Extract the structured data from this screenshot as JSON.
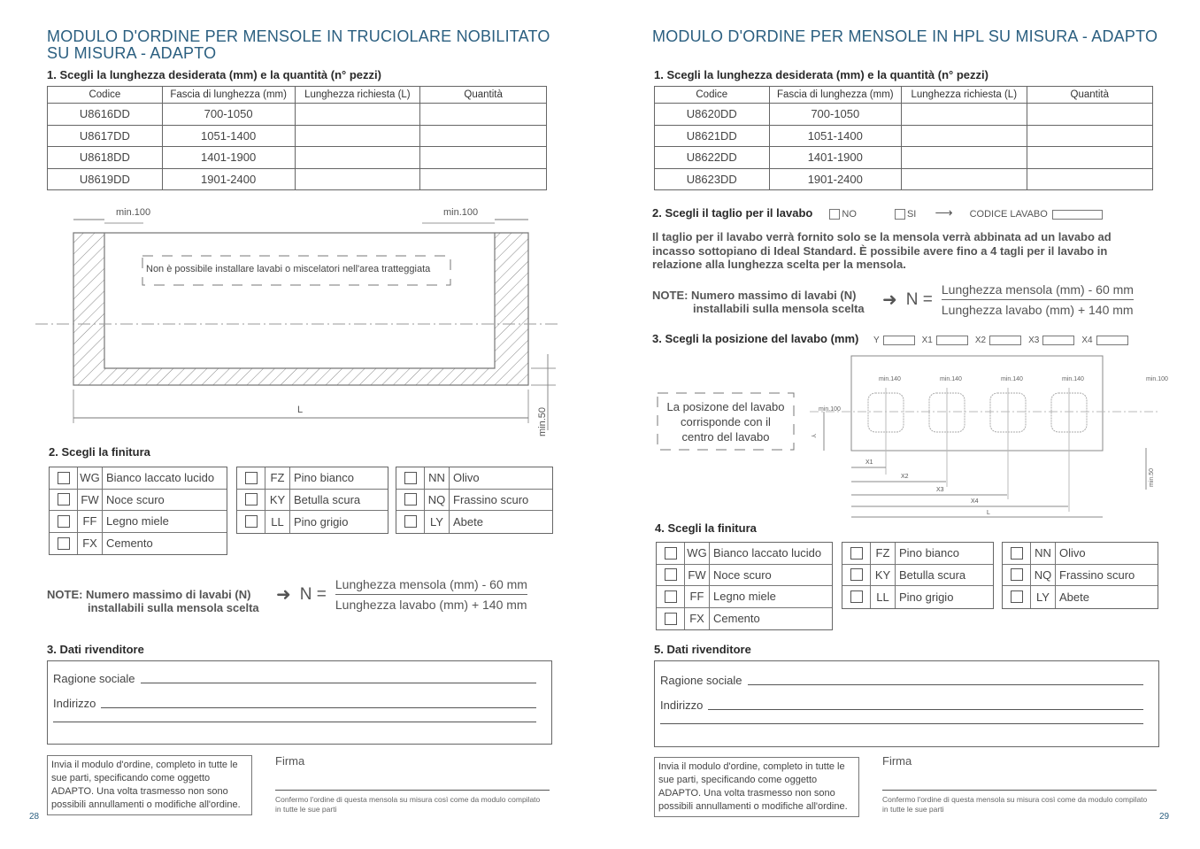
{
  "left": {
    "title_line1": "MODULO D'ORDINE PER MENSOLE IN TRUCIOLARE NOBILITATO",
    "title_line2": "SU MISURA - ADAPTO",
    "section1": "1. Scegli la lunghezza desiderata (mm) e la quantità (n° pezzi)",
    "table_headers": [
      "Codice",
      "Fascia di lunghezza (mm)",
      "Lunghezza richiesta (L)",
      "Quantità"
    ],
    "table_rows": [
      [
        "U8616DD",
        "700-1050"
      ],
      [
        "U8617DD",
        "1051-1400"
      ],
      [
        "U8618DD",
        "1401-1900"
      ],
      [
        "U8619DD",
        "1901-2400"
      ]
    ],
    "diagram": {
      "min_left": "min.100",
      "min_right": "min.100",
      "warning": "Non è possibile installare lavabi o miscelatori nell'area tratteggiata",
      "length": "L",
      "min_bottom": "min.50"
    },
    "section2": "2. Scegli la finitura",
    "finishes": [
      [
        [
          "WG",
          "Bianco laccato lucido"
        ],
        [
          "FW",
          "Noce scuro"
        ],
        [
          "FF",
          "Legno miele"
        ],
        [
          "FX",
          "Cemento"
        ]
      ],
      [
        [
          "FZ",
          "Pino bianco"
        ],
        [
          "KY",
          "Betulla scura"
        ],
        [
          "LL",
          "Pino grigio"
        ]
      ],
      [
        [
          "NN",
          "Olivo"
        ],
        [
          "NQ",
          "Frassino scuro"
        ],
        [
          "LY",
          "Abete"
        ]
      ]
    ],
    "note_line1": "NOTE: Numero massimo di lavabi (N)",
    "note_line2": "installabili sulla mensola scelta",
    "formula_n": "N =",
    "formula_num": "Lunghezza mensola (mm) - 60 mm",
    "formula_den": "Lunghezza lavabo (mm) + 140 mm",
    "section3": "3. Dati rivenditore",
    "field_ragione": "Ragione sociale",
    "field_indirizzo": "Indirizzo",
    "send_text": "Invia il modulo d'ordine, completo in tutte le sue parti, specificando come oggetto ADAPTO. Una volta trasmesso non sono possibili annullamenti o modifiche all'ordine.",
    "firma": "Firma",
    "confirm": "Confermo l'ordine di questa mensola su misura così come da modulo compilato in tutte le sue parti",
    "page_number": "28"
  },
  "right": {
    "title": "MODULO D'ORDINE PER MENSOLE IN HPL SU MISURA - ADAPTO",
    "section1": "1. Scegli la lunghezza desiderata (mm) e la quantità (n° pezzi)",
    "table_headers": [
      "Codice",
      "Fascia di lunghezza (mm)",
      "Lunghezza richiesta (L)",
      "Quantità"
    ],
    "table_rows": [
      [
        "U8620DD",
        "700-1050"
      ],
      [
        "U8621DD",
        "1051-1400"
      ],
      [
        "U8622DD",
        "1401-1900"
      ],
      [
        "U8623DD",
        "1901-2400"
      ]
    ],
    "section2": "2. Scegli il taglio per il lavabo",
    "opt_no": "NO",
    "opt_si": "SI",
    "codice_lavabo": "CODICE LAVABO",
    "paragraph": "Il taglio per il lavabo verrà fornito solo se la mensola verrà abbinata ad un lavabo ad incasso sottopiano di Ideal Standard. È possibile avere fino a 4 tagli per il lavabo in relazione alla lunghezza scelta per la mensola.",
    "note_line1": "NOTE: Numero massimo di lavabi (N)",
    "note_line2": "installabili sulla mensola scelta",
    "formula_n": "N =",
    "formula_num": "Lunghezza mensola (mm) - 60 mm",
    "formula_den": "Lunghezza lavabo (mm) + 140 mm",
    "section3": "3. Scegli la posizione del lavabo (mm)",
    "position_labels": [
      "Y",
      "X1",
      "X2",
      "X3",
      "X4"
    ],
    "diagram": {
      "callout": [
        "La posizone del lavabo",
        "corrisponde con il",
        "centro del lavabo"
      ],
      "min140": "min.140",
      "min100": "min.100",
      "min50": "min.50",
      "y": "Y",
      "x1": "X1",
      "x2": "X2",
      "x3": "X3",
      "x4": "X4",
      "l": "L"
    },
    "section4": "4. Scegli la finitura",
    "finishes": [
      [
        [
          "WG",
          "Bianco laccato lucido"
        ],
        [
          "FW",
          "Noce scuro"
        ],
        [
          "FF",
          "Legno miele"
        ],
        [
          "FX",
          "Cemento"
        ]
      ],
      [
        [
          "FZ",
          "Pino bianco"
        ],
        [
          "KY",
          "Betulla scura"
        ],
        [
          "LL",
          "Pino grigio"
        ]
      ],
      [
        [
          "NN",
          "Olivo"
        ],
        [
          "NQ",
          "Frassino scuro"
        ],
        [
          "LY",
          "Abete"
        ]
      ]
    ],
    "section5": "5. Dati rivenditore",
    "field_ragione": "Ragione sociale",
    "field_indirizzo": "Indirizzo",
    "send_text": "Invia il modulo d'ordine, completo in tutte le sue parti, specificando come oggetto ADAPTO. Una volta trasmesso non sono possibili annullamenti o modifiche all'ordine.",
    "firma": "Firma",
    "confirm": "Confermo l'ordine di questa mensola su misura così come da modulo compilato in tutte le sue parti",
    "page_number": "29"
  },
  "colors": {
    "title": "#2b5f80",
    "lines": "#666666"
  }
}
